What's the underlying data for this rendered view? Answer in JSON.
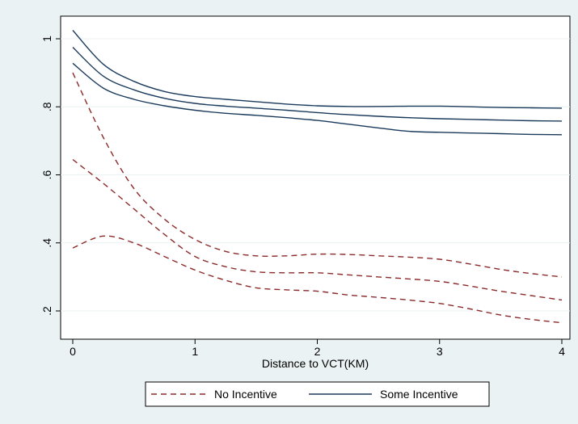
{
  "chart_data": {
    "type": "line",
    "xlabel": "Distance to VCT(KM)",
    "ylabel": "",
    "xlim": [
      0,
      4
    ],
    "ylim": [
      0.15,
      1.05
    ],
    "xticks": [
      0,
      1,
      2,
      3,
      4
    ],
    "xtick_labels": [
      "0",
      "1",
      "2",
      "3",
      "4"
    ],
    "yticks": [
      0.2,
      0.4,
      0.6,
      0.8,
      1.0
    ],
    "ytick_labels": [
      ".2",
      ".4",
      ".6",
      ".8",
      "1"
    ],
    "grid": "horizontal",
    "legend_position": "bottom",
    "legend": [
      {
        "label": "No Incentive",
        "style": "dashed",
        "color": "#8b2a2a"
      },
      {
        "label": "Some Incentive",
        "style": "solid",
        "color": "#1a3a5c"
      }
    ],
    "series": [
      {
        "group": "No Incentive",
        "role": "upper",
        "color": "#8b2a2a",
        "style": "dashed",
        "x": [
          0,
          0.25,
          0.5,
          0.75,
          1,
          1.25,
          1.5,
          1.75,
          2,
          2.25,
          2.5,
          2.75,
          3,
          3.25,
          3.5,
          3.75,
          4
        ],
        "y": [
          0.9,
          0.71,
          0.56,
          0.47,
          0.41,
          0.375,
          0.362,
          0.362,
          0.367,
          0.366,
          0.362,
          0.358,
          0.352,
          0.338,
          0.322,
          0.31,
          0.3
        ]
      },
      {
        "group": "No Incentive",
        "role": "estimate",
        "color": "#8b2a2a",
        "style": "dashed",
        "x": [
          0,
          0.25,
          0.5,
          0.75,
          1,
          1.25,
          1.5,
          1.75,
          2,
          2.25,
          2.5,
          2.75,
          3,
          3.25,
          3.5,
          3.75,
          4
        ],
        "y": [
          0.645,
          0.575,
          0.5,
          0.425,
          0.36,
          0.33,
          0.315,
          0.312,
          0.312,
          0.306,
          0.3,
          0.294,
          0.287,
          0.273,
          0.258,
          0.245,
          0.232
        ]
      },
      {
        "group": "No Incentive",
        "role": "lower",
        "color": "#8b2a2a",
        "style": "dashed",
        "x": [
          0,
          0.25,
          0.5,
          0.75,
          1,
          1.25,
          1.5,
          1.75,
          2,
          2.25,
          2.5,
          2.75,
          3,
          3.25,
          3.5,
          3.75,
          4
        ],
        "y": [
          0.385,
          0.42,
          0.4,
          0.36,
          0.32,
          0.29,
          0.268,
          0.262,
          0.258,
          0.247,
          0.24,
          0.232,
          0.222,
          0.206,
          0.188,
          0.175,
          0.165
        ]
      },
      {
        "group": "Some Incentive",
        "role": "upper",
        "color": "#1a3a5c",
        "style": "solid",
        "x": [
          0,
          0.25,
          0.5,
          0.75,
          1,
          1.25,
          1.5,
          1.75,
          2,
          2.25,
          2.5,
          2.75,
          3,
          3.25,
          3.5,
          3.75,
          4
        ],
        "y": [
          1.025,
          0.925,
          0.875,
          0.845,
          0.83,
          0.822,
          0.815,
          0.808,
          0.803,
          0.801,
          0.801,
          0.802,
          0.802,
          0.8,
          0.798,
          0.797,
          0.796
        ]
      },
      {
        "group": "Some Incentive",
        "role": "estimate",
        "color": "#1a3a5c",
        "style": "solid",
        "x": [
          0,
          0.25,
          0.5,
          0.75,
          1,
          1.25,
          1.5,
          1.75,
          2,
          2.25,
          2.5,
          2.75,
          3,
          3.25,
          3.5,
          3.75,
          4
        ],
        "y": [
          0.975,
          0.89,
          0.85,
          0.825,
          0.81,
          0.802,
          0.796,
          0.79,
          0.783,
          0.777,
          0.772,
          0.768,
          0.765,
          0.763,
          0.761,
          0.759,
          0.758
        ]
      },
      {
        "group": "Some Incentive",
        "role": "lower",
        "color": "#1a3a5c",
        "style": "solid",
        "x": [
          0,
          0.25,
          0.5,
          0.75,
          1,
          1.25,
          1.5,
          1.75,
          2,
          2.25,
          2.5,
          2.75,
          3,
          3.25,
          3.5,
          3.75,
          4
        ],
        "y": [
          0.928,
          0.855,
          0.822,
          0.803,
          0.79,
          0.781,
          0.775,
          0.768,
          0.76,
          0.749,
          0.738,
          0.728,
          0.725,
          0.723,
          0.721,
          0.719,
          0.718
        ]
      }
    ]
  }
}
